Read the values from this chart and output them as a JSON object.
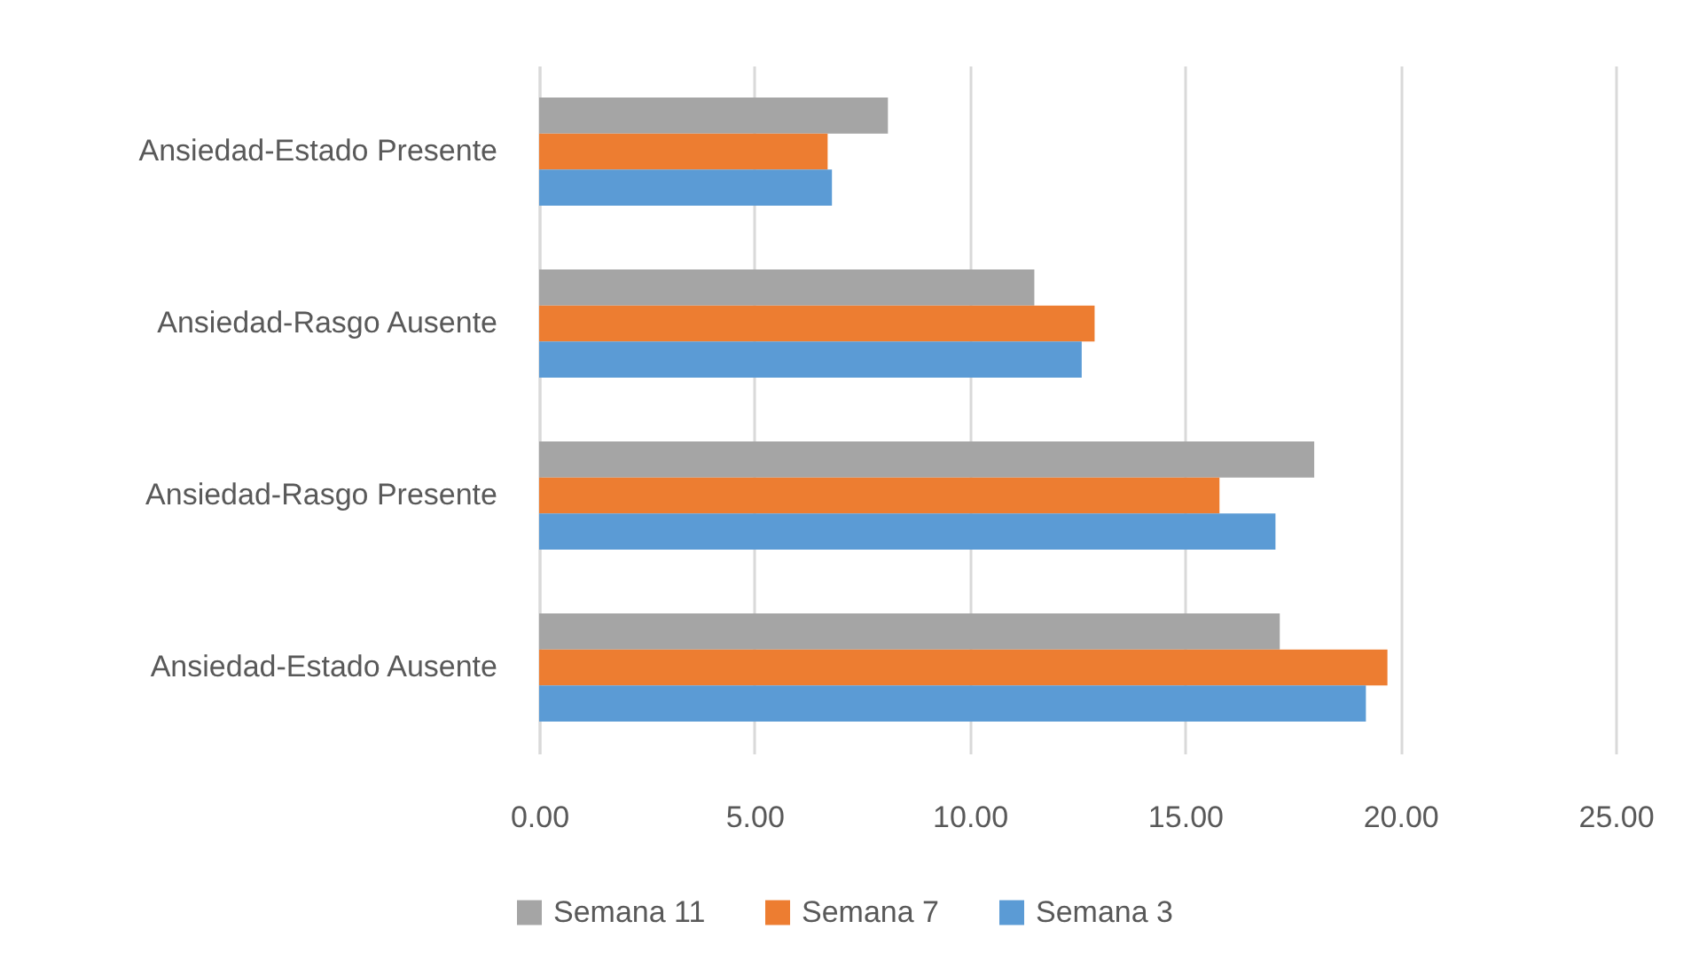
{
  "chart_data": {
    "type": "bar",
    "orientation": "horizontal",
    "categories": [
      "Ansiedad-Estado Presente",
      "Ansiedad-Rasgo Ausente",
      "Ansiedad-Rasgo Presente",
      "Ansiedad-Estado Ausente"
    ],
    "series": [
      {
        "name": "Semana 11",
        "color": "#a5a5a5",
        "values": [
          8.1,
          11.5,
          18.0,
          17.2
        ]
      },
      {
        "name": "Semana 7",
        "color": "#ed7d31",
        "values": [
          6.7,
          12.9,
          15.8,
          19.7
        ]
      },
      {
        "name": "Semana 3",
        "color": "#5b9bd5",
        "values": [
          6.8,
          12.6,
          17.1,
          19.2
        ]
      }
    ],
    "xlim": [
      0,
      25
    ],
    "xticks": [
      {
        "value": 0,
        "label": "0.00"
      },
      {
        "value": 5,
        "label": "5.00"
      },
      {
        "value": 10,
        "label": "10.00"
      },
      {
        "value": 15,
        "label": "15.00"
      },
      {
        "value": 20,
        "label": "20.00"
      },
      {
        "value": 25,
        "label": "25.00"
      }
    ],
    "grid": "x",
    "legend": "bottom"
  }
}
